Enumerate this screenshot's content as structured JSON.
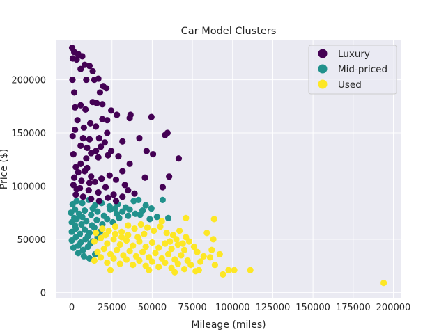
{
  "chart_data": {
    "type": "scatter",
    "title": "Car Model Clusters",
    "xlabel": "Mileage (miles)",
    "ylabel": "Price ($)",
    "xlim": [
      -10000,
      205000
    ],
    "ylim": [
      -5000,
      237000
    ],
    "x_ticks": [
      0,
      25000,
      50000,
      75000,
      100000,
      125000,
      150000,
      175000,
      200000
    ],
    "y_ticks": [
      0,
      50000,
      100000,
      150000,
      200000
    ],
    "grid": true,
    "legend_position": "top-right",
    "colors": {
      "background": "#eaeaf2",
      "grid": "#ffffff",
      "Luxury": "#440154",
      "Mid-priced": "#21918c",
      "Used": "#fde725"
    },
    "series": [
      {
        "name": "Luxury",
        "color": "#440154",
        "points": [
          [
            200,
            230000
          ],
          [
            1500,
            226000
          ],
          [
            600,
            220000
          ],
          [
            3000,
            219000
          ],
          [
            4000,
            224000
          ],
          [
            6500,
            222000
          ],
          [
            8000,
            214000
          ],
          [
            5500,
            210000
          ],
          [
            11000,
            213000
          ],
          [
            13000,
            208000
          ],
          [
            9000,
            200000
          ],
          [
            14000,
            200000
          ],
          [
            16500,
            201000
          ],
          [
            19500,
            194000
          ],
          [
            21500,
            192000
          ],
          [
            17500,
            188000
          ],
          [
            1500,
            188000
          ],
          [
            400,
            200000
          ],
          [
            2000,
            174000
          ],
          [
            5500,
            176000
          ],
          [
            8500,
            172000
          ],
          [
            13000,
            179000
          ],
          [
            15500,
            178000
          ],
          [
            19000,
            177000
          ],
          [
            24500,
            171000
          ],
          [
            28000,
            167000
          ],
          [
            19000,
            163000
          ],
          [
            22000,
            162000
          ],
          [
            15000,
            156000
          ],
          [
            11500,
            159000
          ],
          [
            7500,
            155000
          ],
          [
            3500,
            162000
          ],
          [
            2000,
            153000
          ],
          [
            500,
            147000
          ],
          [
            7000,
            145000
          ],
          [
            11000,
            144000
          ],
          [
            17000,
            145000
          ],
          [
            22000,
            150000
          ],
          [
            36000,
            164000
          ],
          [
            36500,
            167000
          ],
          [
            49500,
            165000
          ],
          [
            58000,
            148000
          ],
          [
            59500,
            150000
          ],
          [
            42000,
            145000
          ],
          [
            31500,
            142000
          ],
          [
            20500,
            141000
          ],
          [
            18000,
            137000
          ],
          [
            15000,
            133000
          ],
          [
            9500,
            136000
          ],
          [
            5500,
            138000
          ],
          [
            1000,
            130000
          ],
          [
            5500,
            121000
          ],
          [
            9000,
            126000
          ],
          [
            12000,
            131000
          ],
          [
            16500,
            127000
          ],
          [
            22500,
            129000
          ],
          [
            24500,
            133000
          ],
          [
            29000,
            128000
          ],
          [
            36000,
            121000
          ],
          [
            46500,
            133000
          ],
          [
            50500,
            130000
          ],
          [
            66500,
            126000
          ],
          [
            2500,
            118000
          ],
          [
            8000,
            114000
          ],
          [
            12000,
            109000
          ],
          [
            14500,
            104000
          ],
          [
            18500,
            107000
          ],
          [
            23500,
            110000
          ],
          [
            27500,
            106000
          ],
          [
            31500,
            114000
          ],
          [
            33000,
            101000
          ],
          [
            45500,
            108000
          ],
          [
            60500,
            109000
          ],
          [
            56500,
            99000
          ],
          [
            1000,
            101000
          ],
          [
            5000,
            98000
          ],
          [
            10500,
            96000
          ],
          [
            16500,
            94000
          ],
          [
            21000,
            99000
          ],
          [
            26000,
            92000
          ],
          [
            35000,
            96000
          ],
          [
            39000,
            93000
          ],
          [
            2500,
            92000
          ],
          [
            7000,
            90000
          ],
          [
            12000,
            88000
          ],
          [
            17000,
            86000
          ],
          [
            22500,
            89000
          ],
          [
            27500,
            86000
          ],
          [
            31500,
            90000
          ],
          [
            1500,
            108000
          ],
          [
            6000,
            105000
          ],
          [
            11000,
            103000
          ],
          [
            4000,
            113000
          ],
          [
            9500,
            117000
          ],
          [
            3000,
            97000
          ]
        ]
      },
      {
        "name": "Mid-priced",
        "color": "#21918c",
        "points": [
          [
            500,
            83000
          ],
          [
            3000,
            86000
          ],
          [
            6500,
            84000
          ],
          [
            10500,
            87000
          ],
          [
            14500,
            82000
          ],
          [
            18500,
            84000
          ],
          [
            23500,
            81000
          ],
          [
            28500,
            83000
          ],
          [
            33500,
            80000
          ],
          [
            38500,
            86000
          ],
          [
            41500,
            87000
          ],
          [
            46000,
            82000
          ],
          [
            49500,
            79000
          ],
          [
            56500,
            87000
          ],
          [
            31500,
            76000
          ],
          [
            35000,
            72000
          ],
          [
            39500,
            74000
          ],
          [
            44000,
            77000
          ],
          [
            53000,
            71000
          ],
          [
            60000,
            70000
          ],
          [
            -500,
            75000
          ],
          [
            2000,
            78000
          ],
          [
            4500,
            74000
          ],
          [
            8000,
            77000
          ],
          [
            12000,
            73000
          ],
          [
            16000,
            76000
          ],
          [
            20000,
            72000
          ],
          [
            24000,
            78000
          ],
          [
            28000,
            74000
          ],
          [
            0,
            66000
          ],
          [
            3000,
            69000
          ],
          [
            6000,
            64000
          ],
          [
            9000,
            67000
          ],
          [
            12500,
            63000
          ],
          [
            15500,
            68000
          ],
          [
            19000,
            64000
          ],
          [
            22000,
            69000
          ],
          [
            25500,
            66000
          ],
          [
            29500,
            70000
          ],
          [
            0,
            57000
          ],
          [
            2500,
            60000
          ],
          [
            5000,
            55000
          ],
          [
            8000,
            59000
          ],
          [
            11000,
            56000
          ],
          [
            14000,
            61000
          ],
          [
            17500,
            57000
          ],
          [
            0,
            49000
          ],
          [
            2500,
            52000
          ],
          [
            5500,
            47000
          ],
          [
            8500,
            50000
          ],
          [
            11500,
            46000
          ],
          [
            1000,
            42000
          ],
          [
            4000,
            44000
          ],
          [
            7000,
            40000
          ],
          [
            10000,
            43000
          ],
          [
            4000,
            37000
          ],
          [
            7500,
            34000
          ],
          [
            11000,
            32000
          ],
          [
            14500,
            36000
          ],
          [
            2000,
            63000
          ],
          [
            6500,
            71000
          ],
          [
            13000,
            79000
          ],
          [
            27000,
            79000
          ],
          [
            36000,
            78000
          ],
          [
            42500,
            73000
          ],
          [
            48500,
            69000
          ],
          [
            10000,
            53000
          ],
          [
            13000,
            48000
          ],
          [
            16000,
            52000
          ],
          [
            1500,
            70000
          ]
        ]
      },
      {
        "name": "Used",
        "color": "#fde725",
        "points": [
          [
            15000,
            56000
          ],
          [
            19000,
            60000
          ],
          [
            23000,
            58000
          ],
          [
            27000,
            62000
          ],
          [
            31000,
            57000
          ],
          [
            35000,
            63000
          ],
          [
            39000,
            60000
          ],
          [
            43000,
            64000
          ],
          [
            47000,
            61000
          ],
          [
            51000,
            58000
          ],
          [
            55000,
            62000
          ],
          [
            59000,
            56000
          ],
          [
            63000,
            54000
          ],
          [
            67000,
            58000
          ],
          [
            71000,
            52000
          ],
          [
            56000,
            67000
          ],
          [
            71000,
            70000
          ],
          [
            88500,
            69000
          ],
          [
            84000,
            56000
          ],
          [
            88000,
            50000
          ],
          [
            14000,
            48000
          ],
          [
            18000,
            51000
          ],
          [
            22000,
            46000
          ],
          [
            26000,
            50000
          ],
          [
            30000,
            45000
          ],
          [
            34000,
            49000
          ],
          [
            38000,
            44000
          ],
          [
            42000,
            48000
          ],
          [
            46000,
            43000
          ],
          [
            50000,
            47000
          ],
          [
            54000,
            42000
          ],
          [
            58000,
            46000
          ],
          [
            62000,
            41000
          ],
          [
            66000,
            45000
          ],
          [
            70000,
            40000
          ],
          [
            76000,
            43000
          ],
          [
            16000,
            38000
          ],
          [
            20000,
            41000
          ],
          [
            24000,
            36000
          ],
          [
            28000,
            40000
          ],
          [
            32000,
            35000
          ],
          [
            36000,
            39000
          ],
          [
            40000,
            34000
          ],
          [
            44000,
            38000
          ],
          [
            48000,
            33000
          ],
          [
            52000,
            37000
          ],
          [
            56000,
            32000
          ],
          [
            60000,
            36000
          ],
          [
            64000,
            31000
          ],
          [
            68000,
            35000
          ],
          [
            72000,
            30000
          ],
          [
            78000,
            38000
          ],
          [
            82000,
            34000
          ],
          [
            87000,
            40000
          ],
          [
            14000,
            30000
          ],
          [
            18000,
            33000
          ],
          [
            22000,
            28000
          ],
          [
            26000,
            32000
          ],
          [
            30000,
            27000
          ],
          [
            34000,
            31000
          ],
          [
            38000,
            26000
          ],
          [
            42000,
            30000
          ],
          [
            46000,
            25000
          ],
          [
            50000,
            29000
          ],
          [
            54000,
            24000
          ],
          [
            58000,
            28000
          ],
          [
            62000,
            23000
          ],
          [
            66000,
            27000
          ],
          [
            70000,
            22000
          ],
          [
            74000,
            26000
          ],
          [
            24000,
            21000
          ],
          [
            48000,
            21000
          ],
          [
            64000,
            19000
          ],
          [
            77000,
            20000
          ],
          [
            79000,
            21000
          ],
          [
            89000,
            26000
          ],
          [
            94000,
            17000
          ],
          [
            97500,
            21000
          ],
          [
            101000,
            21000
          ],
          [
            111000,
            21000
          ],
          [
            194000,
            9000
          ],
          [
            80000,
            29000
          ],
          [
            86000,
            33000
          ],
          [
            92000,
            36000
          ],
          [
            35000,
            54000
          ],
          [
            41000,
            52000
          ],
          [
            45000,
            55000
          ],
          [
            31000,
            52000
          ],
          [
            27000,
            55000
          ],
          [
            21000,
            54000
          ],
          [
            61000,
            48000
          ],
          [
            65000,
            50000
          ],
          [
            69000,
            46000
          ],
          [
            73000,
            48000
          ]
        ]
      }
    ]
  }
}
